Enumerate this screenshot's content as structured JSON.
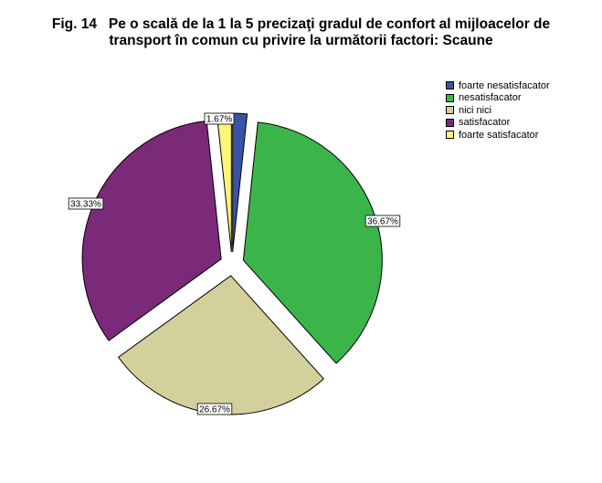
{
  "title": {
    "line1": "Fig. 14   Pe o scală de la 1 la 5 precizaţi gradul de confort al mijloacelor de",
    "line2": "transport în comun cu privire la următorii factori: Scaune"
  },
  "chart_data": {
    "type": "pie",
    "title": "Fig. 14   Pe o scală de la 1 la 5 precizaţi gradul de confort al mijloacelor de transport în comun cu privire la următorii factori: Scaune",
    "categories": [
      "foarte nesatisfacator",
      "nesatisfacator",
      "nici nici",
      "satisfacator",
      "foarte satisfacator"
    ],
    "values": [
      1.67,
      36.67,
      26.67,
      33.33,
      1.67
    ],
    "data_labels": [
      "",
      "36.67%",
      "26.67%",
      "33.33%",
      "1.67%"
    ],
    "colors": [
      "#3b53a6",
      "#3bb54a",
      "#d4d09c",
      "#7b2a7a",
      "#fdf57a"
    ],
    "exploded": true,
    "legend_position": "top-right"
  },
  "legend": {
    "items": [
      {
        "label": "foarte nesatisfacator",
        "color": "#3b53a6"
      },
      {
        "label": "nesatisfacator",
        "color": "#3bb54a"
      },
      {
        "label": "nici nici",
        "color": "#d4d09c"
      },
      {
        "label": "satisfacator",
        "color": "#7b2a7a"
      },
      {
        "label": "foarte satisfacator",
        "color": "#fdf57a"
      }
    ]
  }
}
